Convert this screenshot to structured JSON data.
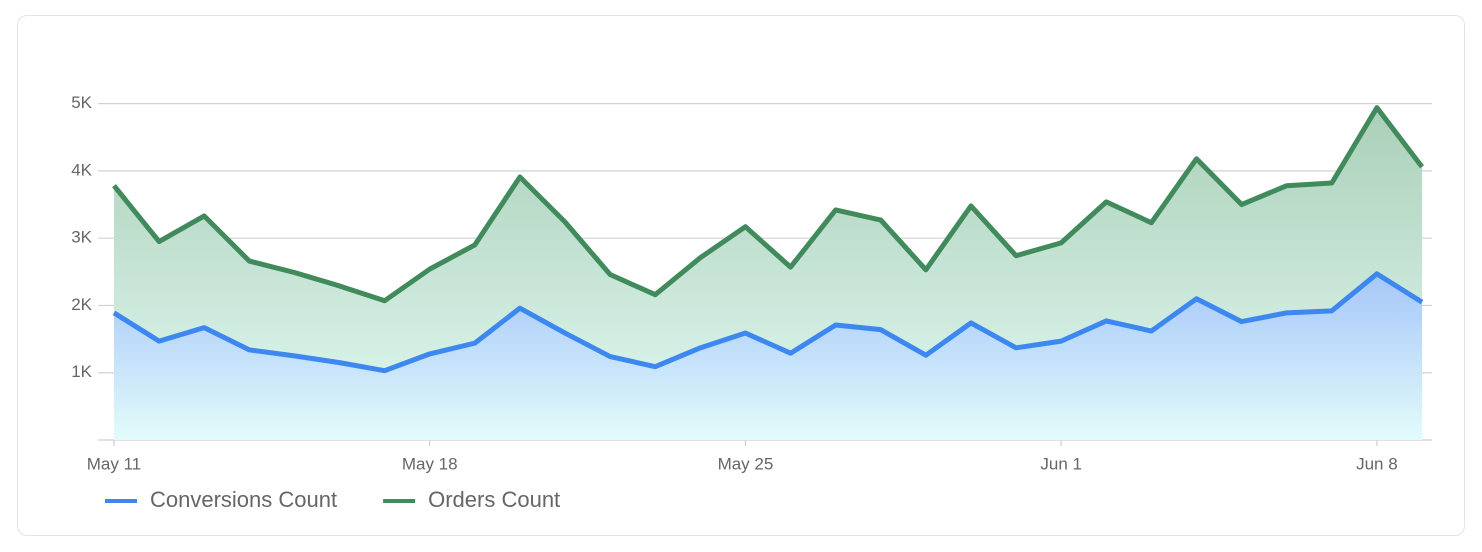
{
  "chart_data": {
    "type": "line",
    "categories": [
      "May 11",
      null,
      null,
      null,
      null,
      null,
      null,
      "May 18",
      null,
      null,
      null,
      null,
      null,
      null,
      "May 25",
      null,
      null,
      null,
      null,
      null,
      null,
      "Jun 1",
      null,
      null,
      null,
      null,
      null,
      null,
      "Jun 8",
      null
    ],
    "series": [
      {
        "name": "Conversions Count",
        "color": "#3d87f0",
        "values": [
          1890,
          1470,
          1670,
          1340,
          1250,
          1150,
          1030,
          1280,
          1440,
          1960,
          1590,
          1240,
          1090,
          1370,
          1590,
          1290,
          1710,
          1640,
          1260,
          1740,
          1370,
          1470,
          1770,
          1620,
          2100,
          1760,
          1890,
          1920,
          2470,
          2050
        ]
      },
      {
        "name": "Orders Count",
        "color": "#418a5c",
        "values": [
          3780,
          2950,
          3330,
          2660,
          2490,
          2290,
          2070,
          2540,
          2900,
          3910,
          3240,
          2460,
          2160,
          2710,
          3170,
          2570,
          3420,
          3270,
          2530,
          3480,
          2740,
          2930,
          3540,
          3230,
          4180,
          3500,
          3780,
          3820,
          4940,
          4060
        ]
      }
    ],
    "ylim": [
      0,
      5500
    ],
    "yticks": [
      {
        "value": 1000,
        "label": "1K"
      },
      {
        "value": 2000,
        "label": "2K"
      },
      {
        "value": 3000,
        "label": "3K"
      },
      {
        "value": 4000,
        "label": "4K"
      },
      {
        "value": 5000,
        "label": "5K"
      }
    ],
    "grid": true,
    "legend": "bottom-left"
  }
}
